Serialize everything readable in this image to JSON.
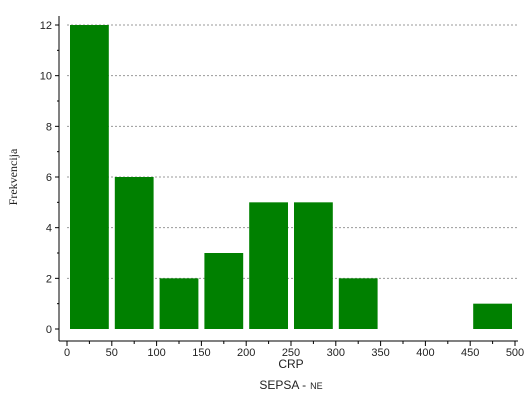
{
  "chart_data": {
    "type": "bar",
    "subtype": "histogram",
    "bin_edges": [
      0,
      50,
      100,
      150,
      200,
      250,
      300,
      350,
      400,
      450,
      500
    ],
    "values": [
      12,
      6,
      2,
      3,
      5,
      5,
      2,
      0,
      0,
      1
    ],
    "xlabel": "CRP",
    "ylabel": "Frekvencija",
    "subtitle_main": "SEPSA -",
    "subtitle_small": "NE",
    "xlim": [
      0,
      500
    ],
    "ylim": [
      0,
      12
    ],
    "xticks": [
      0,
      50,
      100,
      150,
      200,
      250,
      300,
      350,
      400,
      450,
      500
    ],
    "yticks": [
      0,
      2,
      4,
      6,
      8,
      10,
      12
    ],
    "grid": "horizontal-dashed",
    "bar_color": "#008000",
    "bar_edge_color": "#ffffff"
  }
}
